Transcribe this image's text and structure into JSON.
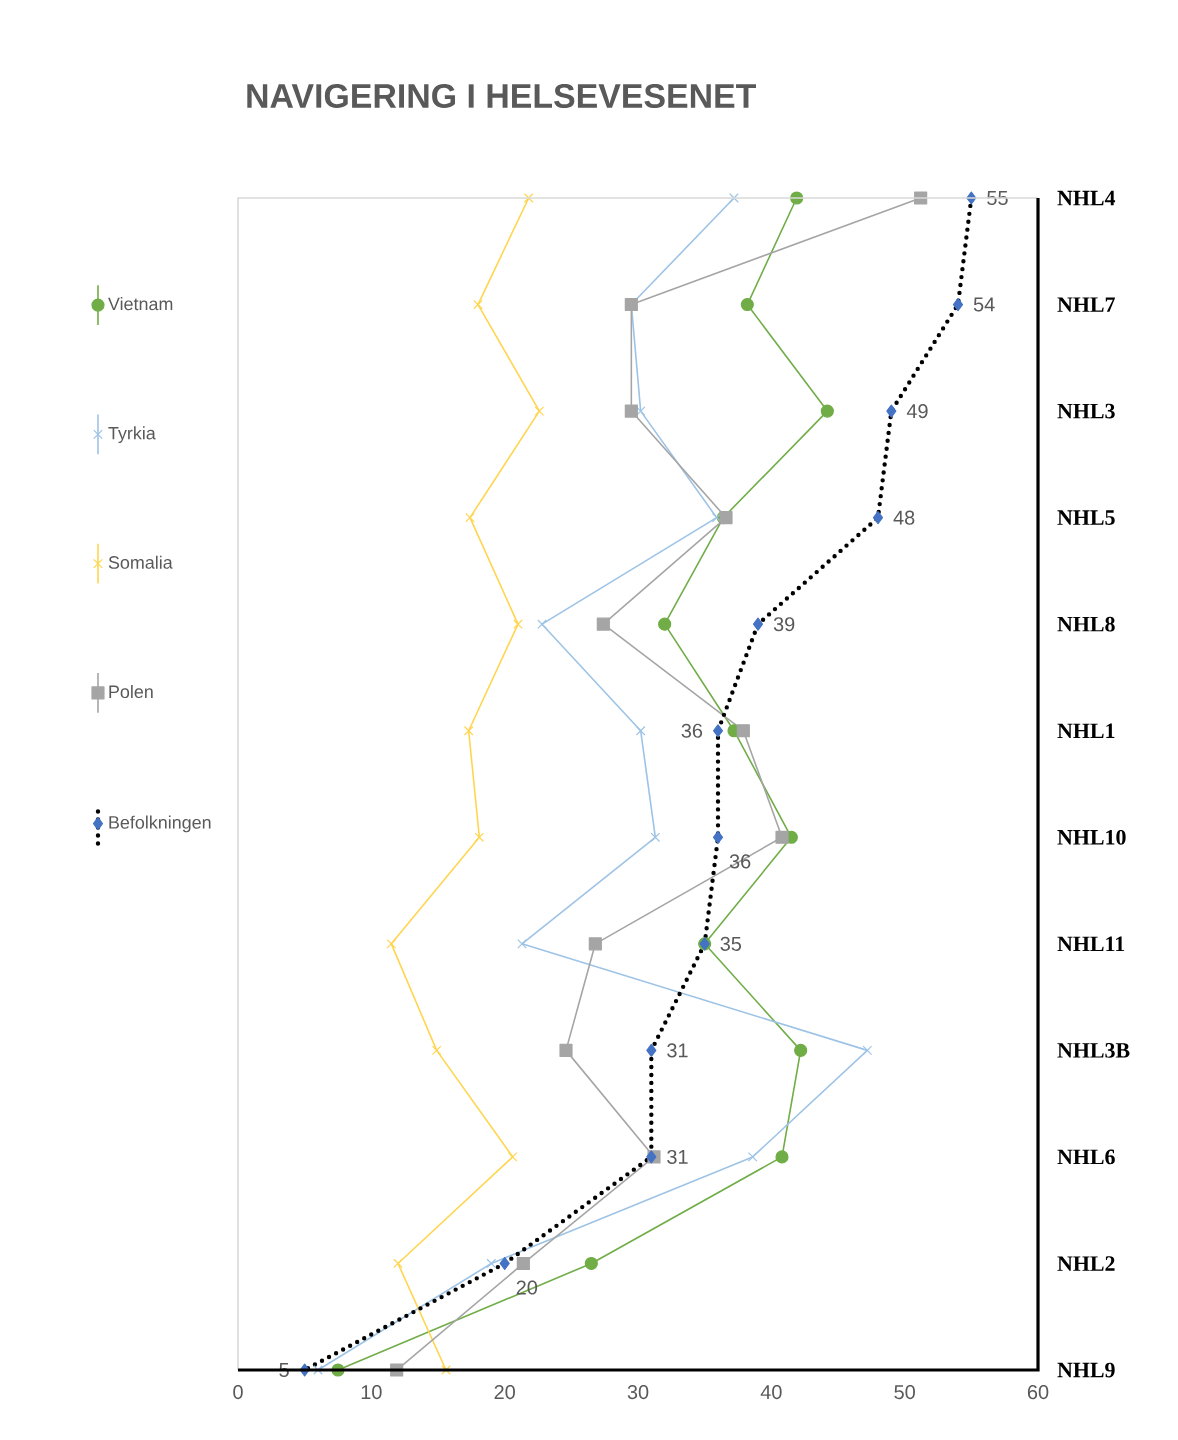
{
  "chart_data": {
    "type": "line",
    "orientation": "horizontal",
    "title": "NAVIGERING I HELSEVESENET",
    "categories": [
      "NHL4",
      "NHL7",
      "NHL3",
      "NHL5",
      "NHL8",
      "NHL1",
      "NHL10",
      "NHL11",
      "NHL3B",
      "NHL6",
      "NHL2",
      "NHL9"
    ],
    "series": [
      {
        "name": "Vietnam",
        "color": "#70ad47",
        "marker": "circle",
        "line_style": "solid",
        "values": [
          41.9,
          38.2,
          44.2,
          36.4,
          32,
          37.2,
          41.5,
          35,
          42.2,
          40.8,
          26.5,
          7.5
        ]
      },
      {
        "name": "Tyrkia",
        "color": "#9dc3e6",
        "marker": "cross",
        "line_style": "solid",
        "values": [
          37.2,
          29.5,
          30.2,
          35.9,
          22.8,
          30.2,
          31.3,
          21.3,
          47.2,
          38.6,
          19,
          6
        ]
      },
      {
        "name": "Somalia",
        "color": "#ffd54f",
        "marker": "cross",
        "line_style": "solid",
        "values": [
          21.8,
          18,
          22.6,
          17.4,
          21,
          17.3,
          18.1,
          11.5,
          14.9,
          20.6,
          12,
          15.6
        ]
      },
      {
        "name": "Polen",
        "color": "#a5a5a5",
        "marker": "square",
        "line_style": "solid",
        "values": [
          51.2,
          29.5,
          29.5,
          36.6,
          27.4,
          37.9,
          40.8,
          26.8,
          24.6,
          31.2,
          21.4,
          11.9
        ]
      },
      {
        "name": "Befolkningen",
        "color": "#4472c4",
        "marker": "diamond",
        "line_style": "dotted",
        "data_labels": true,
        "values": [
          55,
          54,
          49,
          48,
          39,
          36,
          36,
          35,
          31,
          31,
          20,
          5
        ]
      }
    ],
    "xlim": [
      0,
      60
    ],
    "xticks": [
      0,
      10,
      20,
      30,
      40,
      50,
      60
    ],
    "legend": "left"
  }
}
